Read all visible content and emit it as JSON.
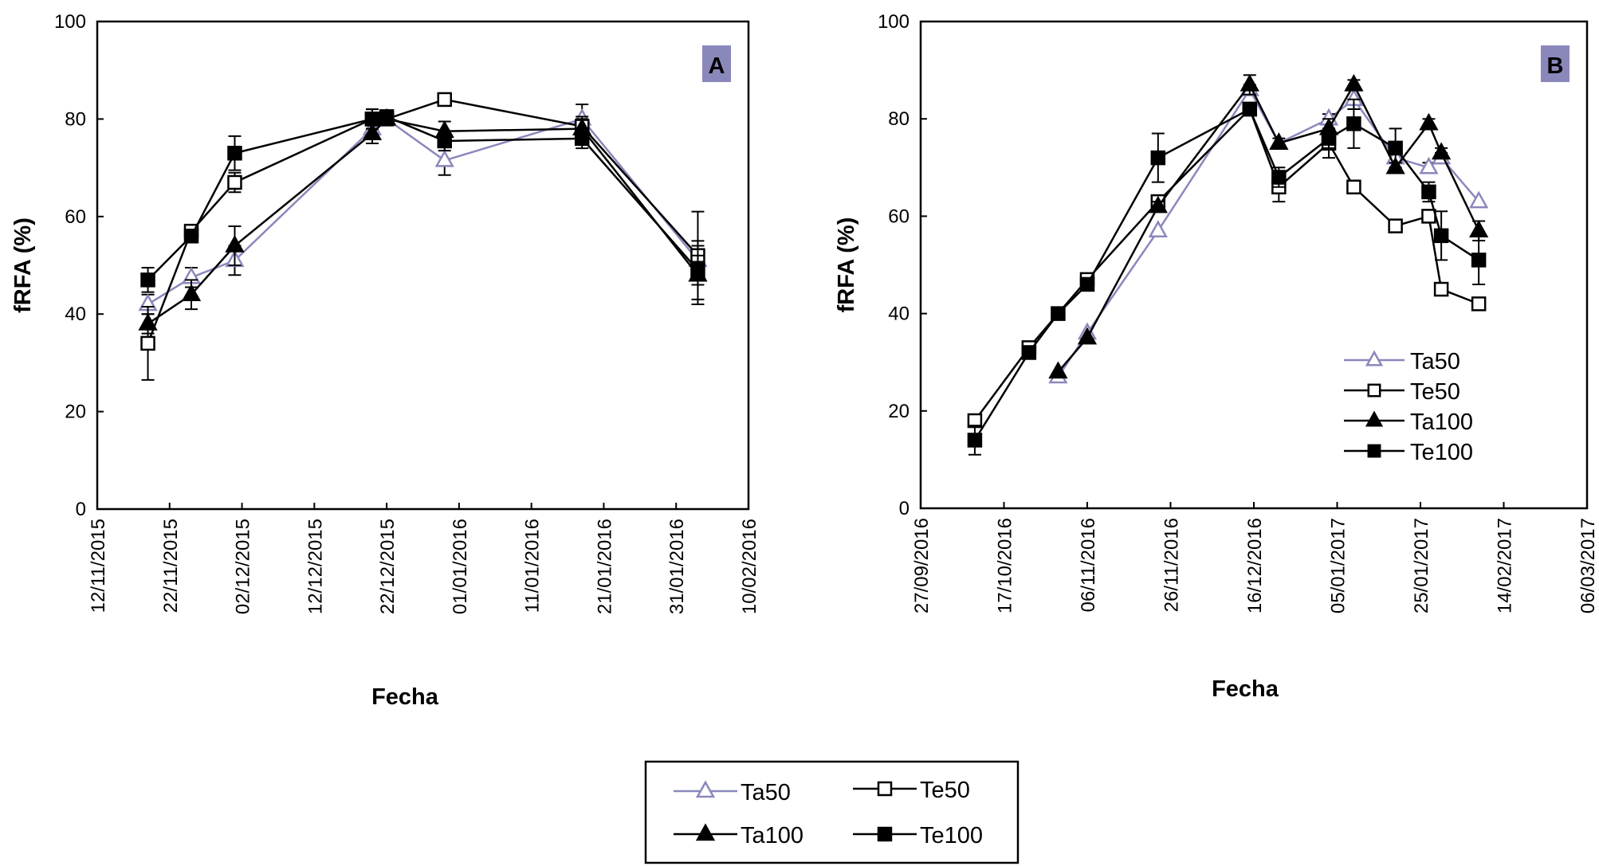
{
  "colors": {
    "Ta50": "#8a88bb",
    "Te50": "#000000",
    "Ta100": "#000000",
    "Te100": "#000000",
    "panel_label_bg": "#8a88bb"
  },
  "markers": {
    "Ta50": "triangle-open",
    "Te50": "square-open",
    "Ta100": "triangle-filled",
    "Te100": "square-filled"
  },
  "legend": [
    "Ta50",
    "Te50",
    "Ta100",
    "Te100"
  ],
  "chart_data": [
    {
      "type": "line",
      "panel_label": "A",
      "xlabel": "Fecha",
      "ylabel": "fRFA (%)",
      "ylim": [
        0,
        100
      ],
      "yticks": [
        0,
        20,
        40,
        60,
        80,
        100
      ],
      "xlim": [
        "12/11/2015",
        "10/02/2016"
      ],
      "xticks": [
        "12/11/2015",
        "22/11/2015",
        "02/12/2015",
        "12/12/2015",
        "22/12/2015",
        "01/01/2016",
        "11/01/2016",
        "21/01/2016",
        "31/01/2016",
        "10/02/2016"
      ],
      "legend_position": "none",
      "series": [
        {
          "name": "Ta50",
          "x": [
            "19/11/2015",
            "25/11/2015",
            "01/12/2015",
            "20/12/2015",
            "22/12/2015",
            "30/12/2015",
            "18/01/2016",
            "03/02/2016"
          ],
          "y": [
            42,
            47.5,
            51,
            78,
            80,
            71.5,
            80,
            51
          ],
          "err": [
            2,
            2,
            3,
            2,
            1,
            3,
            3,
            4
          ]
        },
        {
          "name": "Te50",
          "x": [
            "19/11/2015",
            "25/11/2015",
            "01/12/2015",
            "20/12/2015",
            "22/12/2015",
            "30/12/2015",
            "18/01/2016",
            "03/02/2016"
          ],
          "y": [
            34,
            57,
            67,
            80,
            80,
            84,
            78.5,
            52
          ],
          "err": [
            7.5,
            1,
            2,
            2,
            1,
            1,
            2,
            9
          ]
        },
        {
          "name": "Ta100",
          "x": [
            "19/11/2015",
            "25/11/2015",
            "01/12/2015",
            "20/12/2015",
            "22/12/2015",
            "30/12/2015",
            "18/01/2016",
            "03/02/2016"
          ],
          "y": [
            38,
            44,
            54,
            77,
            80,
            77.5,
            78,
            48
          ],
          "err": [
            2,
            3,
            4,
            2,
            1,
            2,
            2,
            6
          ]
        },
        {
          "name": "Te100",
          "x": [
            "19/11/2015",
            "25/11/2015",
            "01/12/2015",
            "20/12/2015",
            "22/12/2015",
            "30/12/2015",
            "18/01/2016",
            "03/02/2016"
          ],
          "y": [
            47,
            56,
            73,
            80,
            80.5,
            75.5,
            76,
            49
          ],
          "err": [
            2.5,
            1,
            3.5,
            2,
            1,
            2,
            2,
            3
          ]
        }
      ]
    },
    {
      "type": "line",
      "panel_label": "B",
      "xlabel": "Fecha",
      "ylabel": "fRFA (%)",
      "ylim": [
        0,
        100
      ],
      "yticks": [
        0,
        20,
        40,
        60,
        80,
        100
      ],
      "xlim": [
        "27/09/2016",
        "06/03/2017"
      ],
      "xticks": [
        "27/09/2016",
        "17/10/2016",
        "06/11/2016",
        "26/11/2016",
        "16/12/2016",
        "05/01/2017",
        "25/01/2017",
        "14/02/2017",
        "06/03/2017"
      ],
      "legend_position": "bottom-right",
      "series": [
        {
          "name": "Ta50",
          "x": [
            "30/10/2016",
            "06/11/2016",
            "23/11/2016",
            "15/12/2016",
            "22/12/2016",
            "03/01/2017",
            "09/01/2017",
            "19/01/2017",
            "27/01/2017",
            "30/01/2017",
            "08/02/2017"
          ],
          "y": [
            27,
            36,
            57,
            86,
            75,
            80,
            84,
            72,
            70,
            72,
            63
          ],
          "err": [
            0,
            0,
            0,
            1,
            0,
            1,
            2,
            1,
            1,
            1,
            0
          ]
        },
        {
          "name": "Te50",
          "x": [
            "10/10/2016",
            "23/10/2016",
            "06/11/2016",
            "23/11/2016",
            "15/12/2016",
            "22/12/2016",
            "03/01/2017",
            "09/01/2017",
            "19/01/2017",
            "27/01/2017",
            "30/01/2017",
            "08/02/2017"
          ],
          "y": [
            18,
            33,
            47,
            63,
            82,
            66,
            75,
            66,
            58,
            60,
            45,
            42
          ],
          "err": [
            1,
            1,
            1,
            1,
            1,
            3,
            3,
            0,
            0,
            1,
            0,
            0
          ]
        },
        {
          "name": "Ta100",
          "x": [
            "30/10/2016",
            "06/11/2016",
            "23/11/2016",
            "15/12/2016",
            "22/12/2016",
            "03/01/2017",
            "09/01/2017",
            "19/01/2017",
            "27/01/2017",
            "30/01/2017",
            "08/02/2017"
          ],
          "y": [
            28,
            35,
            62,
            87,
            75,
            78,
            87,
            70,
            79,
            73,
            57
          ],
          "err": [
            0,
            0,
            1,
            2,
            1,
            2,
            1,
            1,
            1,
            1,
            2
          ]
        },
        {
          "name": "Te100",
          "x": [
            "10/10/2016",
            "23/10/2016",
            "30/10/2016",
            "06/11/2016",
            "23/11/2016",
            "15/12/2016",
            "22/12/2016",
            "03/01/2017",
            "09/01/2017",
            "19/01/2017",
            "27/01/2017",
            "30/01/2017",
            "08/02/2017"
          ],
          "y": [
            14,
            32,
            40,
            46,
            72,
            82,
            68,
            76,
            79,
            74,
            65,
            56,
            51
          ],
          "err": [
            3,
            1,
            0,
            1,
            5,
            1,
            2,
            2,
            5,
            4,
            2,
            5,
            5
          ]
        }
      ]
    }
  ]
}
